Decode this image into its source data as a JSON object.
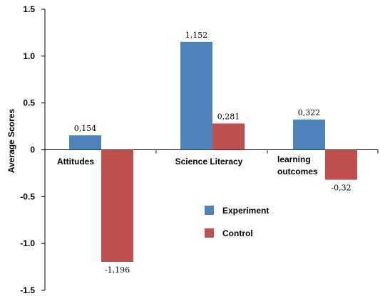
{
  "chart_data": {
    "type": "bar",
    "ylabel": "Average Scores",
    "ylim": [
      -1.5,
      1.5
    ],
    "yticks": [
      "1.5",
      "1.0",
      "0.5",
      "0",
      "-0.5",
      "-1.0",
      "-1.5"
    ],
    "ytick_values": [
      1.5,
      1.0,
      0.5,
      0,
      -0.5,
      -1.0,
      -1.5
    ],
    "categories": [
      "Attitudes",
      "Science Literacy",
      "learning outcomes"
    ],
    "series": [
      {
        "name": "Experiment",
        "color": "#4f81bd",
        "values": [
          0.154,
          1.152,
          0.322
        ],
        "labels": [
          "0,154",
          "1,152",
          "0,322"
        ]
      },
      {
        "name": "Control",
        "color": "#c0504d",
        "values": [
          -1.196,
          0.281,
          -0.32
        ],
        "labels": [
          "-1,196",
          "0,281",
          "-0,32"
        ]
      }
    ],
    "legend_position": "center-right",
    "grid": false
  }
}
